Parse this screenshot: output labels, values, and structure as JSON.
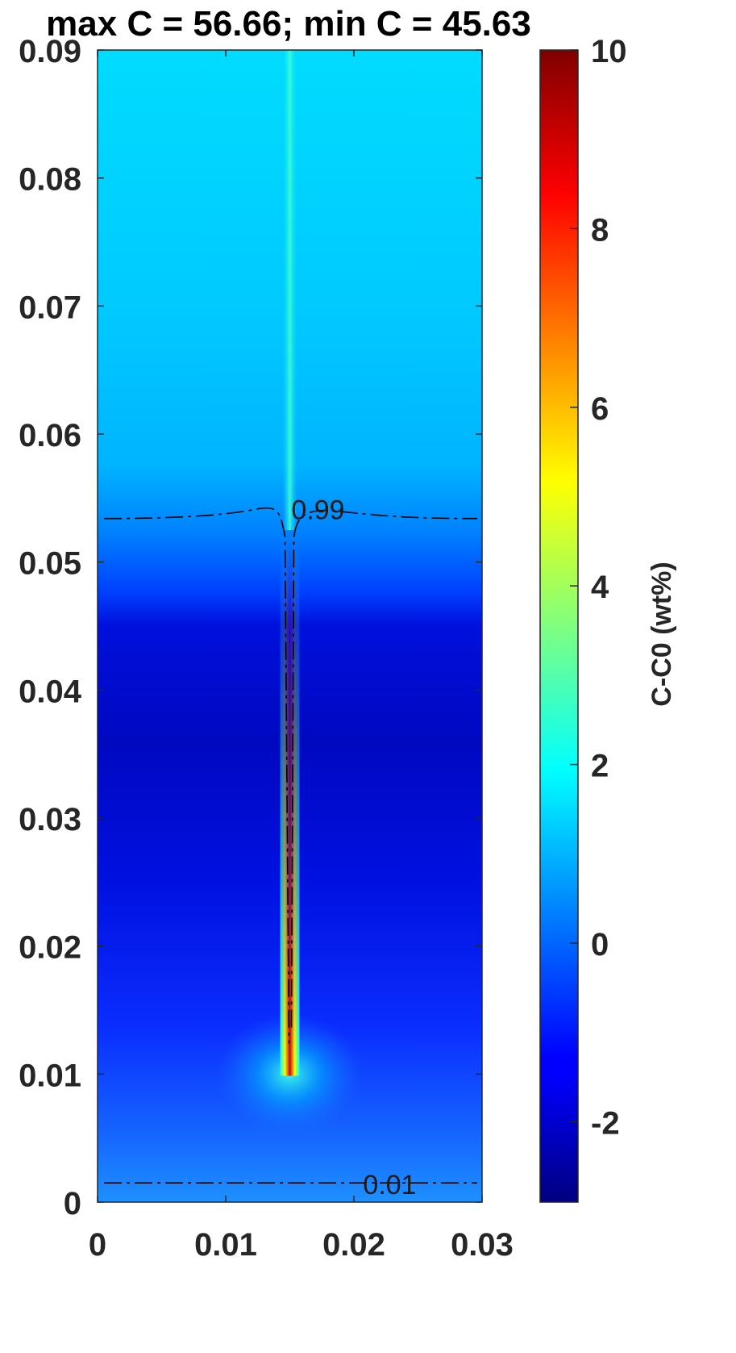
{
  "chart_data": {
    "type": "heatmap",
    "title": "max C = 56.66; min C = 45.63",
    "xlabel": "",
    "ylabel": "",
    "xlim": [
      0,
      0.03
    ],
    "ylim": [
      0,
      0.09
    ],
    "x_ticks": [
      {
        "value": 0,
        "label": "0"
      },
      {
        "value": 0.01,
        "label": "0.01"
      },
      {
        "value": 0.02,
        "label": "0.02"
      },
      {
        "value": 0.03,
        "label": "0.03"
      }
    ],
    "y_ticks": [
      {
        "value": 0,
        "label": "0"
      },
      {
        "value": 0.01,
        "label": "0.01"
      },
      {
        "value": 0.02,
        "label": "0.02"
      },
      {
        "value": 0.03,
        "label": "0.03"
      },
      {
        "value": 0.04,
        "label": "0.04"
      },
      {
        "value": 0.05,
        "label": "0.05"
      },
      {
        "value": 0.06,
        "label": "0.06"
      },
      {
        "value": 0.07,
        "label": "0.07"
      },
      {
        "value": 0.08,
        "label": "0.08"
      },
      {
        "value": 0.09,
        "label": "0.09"
      }
    ],
    "colorbar": {
      "label": "C-C0 (wt%)",
      "range": [
        -2.9,
        10
      ],
      "ticks": [
        {
          "value": -2,
          "label": "-2"
        },
        {
          "value": 0,
          "label": "0"
        },
        {
          "value": 2,
          "label": "2"
        },
        {
          "value": 4,
          "label": "4"
        },
        {
          "value": 6,
          "label": "6"
        },
        {
          "value": 8,
          "label": "8"
        },
        {
          "value": 10,
          "label": "10"
        }
      ],
      "colormap": "jet"
    },
    "contours": [
      {
        "level": "0.99",
        "label": "0.99",
        "y": 0.0534,
        "label_x": 0.0172,
        "label_y": 0.0541
      },
      {
        "level": "0.01",
        "label": "0.01",
        "y": 0.0015,
        "label_x": 0.0228,
        "label_y": 0.0014
      }
    ],
    "channel": {
      "x_center": 0.015,
      "y_bottom": 0.0105,
      "y_top": 0.0525
    },
    "colors": {
      "background": "#ffffff",
      "axis": "#262626",
      "contour": "#000000"
    }
  }
}
